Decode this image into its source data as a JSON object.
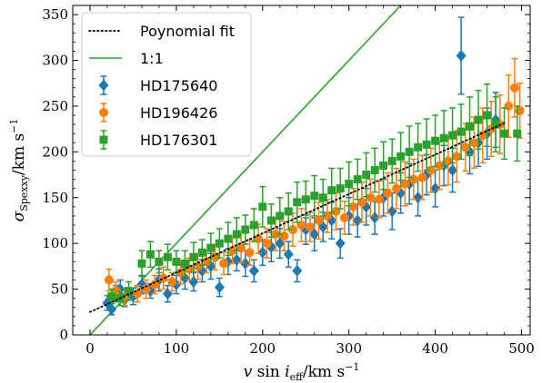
{
  "chart_data": {
    "type": "scatter",
    "xlabel": "v sin i_eff/km s^-1",
    "ylabel": "σ_Spexxy/km s^-1",
    "xlim": [
      -20,
      510
    ],
    "ylim": [
      0,
      360
    ],
    "x_ticks": [
      0,
      100,
      200,
      300,
      400,
      500
    ],
    "y_ticks": [
      0,
      50,
      100,
      150,
      200,
      250,
      300,
      350
    ],
    "grid": false,
    "legend_position": "top-left",
    "fit_line": {
      "name": "Poynomial fit",
      "color": "#000000",
      "style": "dotted",
      "intercept": 25,
      "slope": 0.43
    },
    "identity_line": {
      "name": "1:1",
      "color": "#2ca02c"
    },
    "series": [
      {
        "name": "HD175640",
        "marker": "diamond",
        "color": "#1f77b4",
        "points": [
          [
            20,
            35,
            8
          ],
          [
            25,
            28,
            6
          ],
          [
            30,
            45,
            9
          ],
          [
            35,
            50,
            10
          ],
          [
            40,
            38,
            7
          ],
          [
            50,
            42,
            9
          ],
          [
            60,
            55,
            10
          ],
          [
            70,
            48,
            8
          ],
          [
            80,
            60,
            12
          ],
          [
            90,
            45,
            9
          ],
          [
            100,
            55,
            10
          ],
          [
            110,
            62,
            12
          ],
          [
            120,
            58,
            10
          ],
          [
            130,
            70,
            12
          ],
          [
            140,
            75,
            14
          ],
          [
            150,
            52,
            10
          ],
          [
            160,
            80,
            14
          ],
          [
            170,
            82,
            12
          ],
          [
            180,
            78,
            14
          ],
          [
            190,
            70,
            12
          ],
          [
            200,
            90,
            14
          ],
          [
            210,
            96,
            16
          ],
          [
            220,
            100,
            16
          ],
          [
            230,
            88,
            14
          ],
          [
            240,
            70,
            12
          ],
          [
            250,
            115,
            16
          ],
          [
            260,
            110,
            18
          ],
          [
            270,
            118,
            16
          ],
          [
            280,
            125,
            20
          ],
          [
            290,
            100,
            16
          ],
          [
            300,
            130,
            20
          ],
          [
            310,
            125,
            18
          ],
          [
            320,
            140,
            20
          ],
          [
            330,
            128,
            18
          ],
          [
            340,
            150,
            20
          ],
          [
            350,
            135,
            20
          ],
          [
            360,
            155,
            22
          ],
          [
            370,
            165,
            22
          ],
          [
            380,
            150,
            20
          ],
          [
            390,
            175,
            22
          ],
          [
            400,
            160,
            20
          ],
          [
            410,
            185,
            22
          ],
          [
            420,
            180,
            24
          ],
          [
            430,
            305,
            42
          ],
          [
            440,
            200,
            24
          ],
          [
            450,
            210,
            26
          ],
          [
            460,
            220,
            28
          ],
          [
            470,
            235,
            30
          ]
        ]
      },
      {
        "name": "HD196426",
        "marker": "circle",
        "color": "#ff7f0e",
        "points": [
          [
            22,
            60,
            12
          ],
          [
            30,
            48,
            10
          ],
          [
            40,
            40,
            8
          ],
          [
            55,
            45,
            9
          ],
          [
            65,
            50,
            10
          ],
          [
            75,
            55,
            10
          ],
          [
            85,
            62,
            12
          ],
          [
            95,
            58,
            10
          ],
          [
            105,
            68,
            12
          ],
          [
            115,
            72,
            12
          ],
          [
            125,
            75,
            14
          ],
          [
            135,
            80,
            12
          ],
          [
            145,
            85,
            14
          ],
          [
            155,
            78,
            12
          ],
          [
            165,
            92,
            14
          ],
          [
            175,
            95,
            16
          ],
          [
            185,
            90,
            14
          ],
          [
            195,
            105,
            16
          ],
          [
            205,
            100,
            16
          ],
          [
            215,
            110,
            18
          ],
          [
            225,
            108,
            16
          ],
          [
            235,
            115,
            18
          ],
          [
            245,
            120,
            18
          ],
          [
            255,
            118,
            16
          ],
          [
            265,
            125,
            20
          ],
          [
            275,
            130,
            18
          ],
          [
            285,
            135,
            20
          ],
          [
            295,
            128,
            18
          ],
          [
            305,
            140,
            20
          ],
          [
            315,
            145,
            22
          ],
          [
            325,
            150,
            20
          ],
          [
            335,
            148,
            20
          ],
          [
            345,
            155,
            22
          ],
          [
            355,
            160,
            22
          ],
          [
            365,
            165,
            24
          ],
          [
            375,
            170,
            22
          ],
          [
            385,
            172,
            24
          ],
          [
            395,
            180,
            24
          ],
          [
            405,
            185,
            26
          ],
          [
            415,
            190,
            26
          ],
          [
            425,
            195,
            28
          ],
          [
            435,
            205,
            26
          ],
          [
            445,
            210,
            28
          ],
          [
            455,
            218,
            30
          ],
          [
            465,
            225,
            30
          ],
          [
            475,
            230,
            32
          ],
          [
            485,
            250,
            34
          ],
          [
            492,
            270,
            32
          ],
          [
            498,
            245,
            30
          ]
        ]
      },
      {
        "name": "HD176301",
        "marker": "square",
        "color": "#2ca02c",
        "points": [
          [
            25,
            42,
            8
          ],
          [
            35,
            40,
            8
          ],
          [
            45,
            48,
            10
          ],
          [
            60,
            78,
            14
          ],
          [
            70,
            88,
            14
          ],
          [
            80,
            80,
            12
          ],
          [
            90,
            85,
            14
          ],
          [
            100,
            80,
            12
          ],
          [
            110,
            78,
            14
          ],
          [
            120,
            85,
            16
          ],
          [
            130,
            90,
            14
          ],
          [
            140,
            95,
            16
          ],
          [
            150,
            100,
            16
          ],
          [
            160,
            105,
            18
          ],
          [
            170,
            110,
            18
          ],
          [
            180,
            115,
            16
          ],
          [
            190,
            120,
            18
          ],
          [
            200,
            140,
            22
          ],
          [
            210,
            125,
            18
          ],
          [
            220,
            130,
            20
          ],
          [
            230,
            135,
            20
          ],
          [
            240,
            145,
            22
          ],
          [
            250,
            148,
            20
          ],
          [
            260,
            152,
            22
          ],
          [
            270,
            150,
            20
          ],
          [
            280,
            158,
            24
          ],
          [
            290,
            160,
            22
          ],
          [
            300,
            165,
            24
          ],
          [
            310,
            170,
            22
          ],
          [
            320,
            175,
            24
          ],
          [
            330,
            180,
            24
          ],
          [
            340,
            185,
            26
          ],
          [
            350,
            190,
            24
          ],
          [
            360,
            195,
            26
          ],
          [
            370,
            200,
            28
          ],
          [
            380,
            205,
            26
          ],
          [
            390,
            208,
            28
          ],
          [
            400,
            212,
            28
          ],
          [
            410,
            215,
            30
          ],
          [
            420,
            218,
            30
          ],
          [
            430,
            222,
            30
          ],
          [
            440,
            228,
            32
          ],
          [
            450,
            235,
            32
          ],
          [
            460,
            240,
            34
          ],
          [
            470,
            230,
            30
          ],
          [
            480,
            220,
            28
          ],
          [
            495,
            220,
            30
          ]
        ]
      }
    ]
  }
}
